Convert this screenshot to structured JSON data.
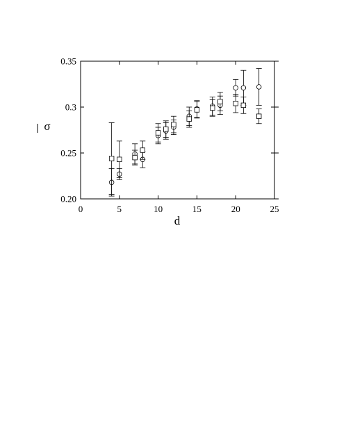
{
  "chart_data": {
    "type": "scatter",
    "xlabel": "d",
    "ylabel": "σ",
    "xlim": [
      0,
      25
    ],
    "ylim": [
      0.2,
      0.35
    ],
    "x_ticks": [
      0,
      5,
      10,
      15,
      20,
      25
    ],
    "x_tick_labels": [
      "0",
      "5",
      "10",
      "15",
      "20",
      "25"
    ],
    "y_ticks": [
      0.2,
      0.25,
      0.3,
      0.35
    ],
    "y_tick_labels": [
      "0.20",
      "0.25",
      "0.3",
      "0.35"
    ],
    "grid": false,
    "series": [
      {
        "marker": "circle",
        "points": [
          {
            "x": 4,
            "y": 0.218,
            "err": 0.015
          },
          {
            "x": 5,
            "y": 0.227,
            "err": 0.006
          },
          {
            "x": 7,
            "y": 0.249,
            "err": 0.011
          },
          {
            "x": 8,
            "y": 0.243,
            "err": 0.009
          },
          {
            "x": 10,
            "y": 0.269,
            "err": 0.009
          },
          {
            "x": 11,
            "y": 0.274,
            "err": 0.009
          },
          {
            "x": 12,
            "y": 0.278,
            "err": 0.008
          },
          {
            "x": 14,
            "y": 0.29,
            "err": 0.01
          },
          {
            "x": 15,
            "y": 0.298,
            "err": 0.009
          },
          {
            "x": 17,
            "y": 0.301,
            "err": 0.01
          },
          {
            "x": 18,
            "y": 0.302,
            "err": 0.01
          },
          {
            "x": 20,
            "y": 0.321,
            "err": 0.009
          },
          {
            "x": 21,
            "y": 0.321,
            "err": 0.019
          },
          {
            "x": 23,
            "y": 0.322,
            "err": 0.02
          }
        ]
      },
      {
        "marker": "square",
        "points": [
          {
            "x": 4,
            "y": 0.244,
            "err": 0.039
          },
          {
            "x": 5,
            "y": 0.243,
            "err": 0.02
          },
          {
            "x": 7,
            "y": 0.245,
            "err": 0.008
          },
          {
            "x": 8,
            "y": 0.253,
            "err": 0.01
          },
          {
            "x": 10,
            "y": 0.272,
            "err": 0.01
          },
          {
            "x": 11,
            "y": 0.276,
            "err": 0.009
          },
          {
            "x": 12,
            "y": 0.281,
            "err": 0.009
          },
          {
            "x": 14,
            "y": 0.287,
            "err": 0.009
          },
          {
            "x": 15,
            "y": 0.297,
            "err": 0.009
          },
          {
            "x": 17,
            "y": 0.299,
            "err": 0.009
          },
          {
            "x": 18,
            "y": 0.306,
            "err": 0.01
          },
          {
            "x": 20,
            "y": 0.304,
            "err": 0.01
          },
          {
            "x": 21,
            "y": 0.302,
            "err": 0.009
          },
          {
            "x": 23,
            "y": 0.29,
            "err": 0.008
          }
        ]
      }
    ]
  }
}
